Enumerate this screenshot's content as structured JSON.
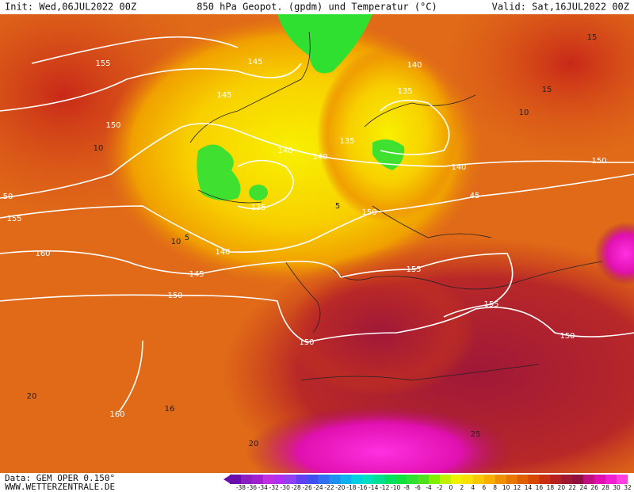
{
  "header": {
    "init": "Init: Wed,06JUL2022 00Z",
    "title": "850 hPa Geopot. (gpdm) und Temperatur (°C)",
    "valid": "Valid: Sat,16JUL2022 00Z"
  },
  "footer": {
    "data": "Data: GEM OPER 0.150°",
    "site": "WWW.WETTERZENTRALE.DE"
  },
  "colorbar": {
    "labels": [
      -38,
      -36,
      -34,
      -32,
      -30,
      -28,
      -26,
      -24,
      -22,
      -20,
      -18,
      -16,
      -14,
      -12,
      -10,
      -8,
      -6,
      -4,
      -2,
      0,
      2,
      4,
      6,
      8,
      10,
      12,
      14,
      16,
      18,
      20,
      22,
      24,
      26,
      28,
      30,
      32
    ],
    "colors": [
      "#6a0dad",
      "#8a1ec0",
      "#a020d0",
      "#c030e0",
      "#b030f0",
      "#9040f0",
      "#6040f0",
      "#4050f0",
      "#3070f0",
      "#2090f0",
      "#10b0f0",
      "#00d0e0",
      "#00e0c0",
      "#00e090",
      "#00e060",
      "#10e040",
      "#30e030",
      "#50e020",
      "#80f000",
      "#c0f000",
      "#f0f000",
      "#f8e000",
      "#f8c800",
      "#f8b000",
      "#f09000",
      "#e87800",
      "#e06000",
      "#d84800",
      "#c83010",
      "#b82020",
      "#a01830",
      "#901040",
      "#c01080",
      "#e010b0",
      "#f020d0",
      "#ff40e0"
    ]
  },
  "map": {
    "contour_labels": [
      "155",
      "145",
      "145",
      "150",
      "140",
      "140",
      "135",
      "135",
      "140",
      "140",
      "150",
      "45",
      "150",
      "135",
      "140",
      "145",
      "150",
      "160",
      "155",
      "50",
      "155",
      "155",
      "150",
      "150",
      "160"
    ],
    "temperature_labels": [
      "15",
      "10",
      "10",
      "15",
      "5",
      "5",
      "10",
      "16",
      "20",
      "20",
      "25"
    ]
  }
}
